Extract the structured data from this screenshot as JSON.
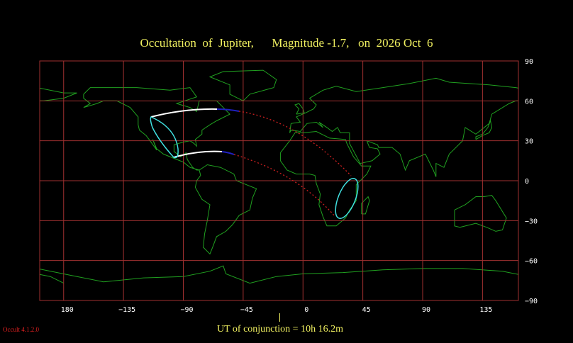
{
  "title": "Occultation  of  Jupiter,      Magnitude -1.7,   on  2026 Oct  6",
  "conjunction": "UT of conjunction = 10h 16.2m",
  "version": "Occult 4.1.2.0",
  "map": {
    "projection": "equirectangular",
    "lon_range": [
      -198,
      162
    ],
    "lat_range": [
      -90,
      90
    ],
    "lon_ticks": [
      "180",
      "−135",
      "−90",
      "−45",
      "0",
      "45",
      "90",
      "135"
    ],
    "lat_ticks": [
      "90",
      "60",
      "30",
      "0",
      "−30",
      "−60",
      "−90"
    ],
    "colors": {
      "grid": "#a03030",
      "coast": "#20a020",
      "limit_day": "#ffffff",
      "limit_twilight": "#2020c0",
      "limit_below_horizon": "#d02020",
      "rise_set": "#40e0e0",
      "title": "#f0f060"
    }
  }
}
